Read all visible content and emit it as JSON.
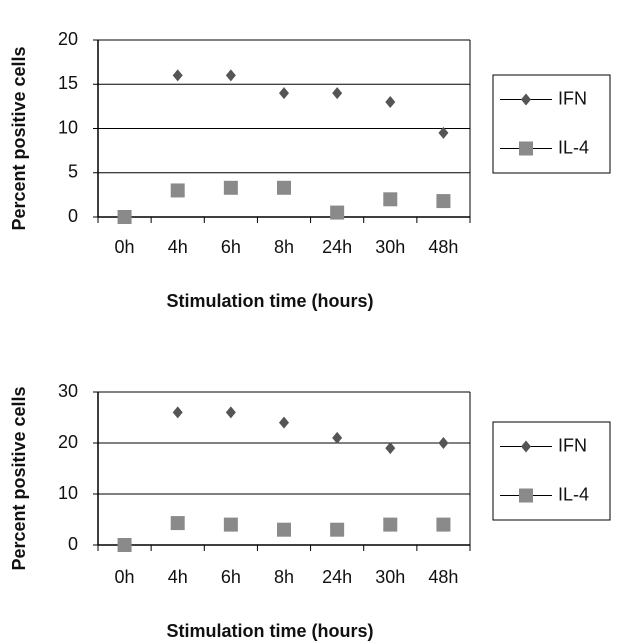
{
  "chart_data": [
    {
      "type": "scatter",
      "x_label": "Stimulation time (hours)",
      "y_label": "Percent positive cells",
      "categories": [
        "0h",
        "4h",
        "6h",
        "8h",
        "24h",
        "30h",
        "48h"
      ],
      "series": [
        {
          "name": "IFN",
          "color": "#555555",
          "marker": "diamond",
          "values": [
            null,
            16,
            16,
            14,
            14,
            13,
            9.5
          ]
        },
        {
          "name": "IL-4",
          "color": "#8a8a8a",
          "marker": "square",
          "values": [
            0,
            3,
            3.3,
            3.3,
            0.5,
            2,
            1.8
          ]
        }
      ],
      "ylim": [
        0,
        20
      ],
      "yticks": [
        0,
        5,
        10,
        15,
        20
      ],
      "grid": true,
      "legend": "right"
    },
    {
      "type": "scatter",
      "x_label": "Stimulation time (hours)",
      "y_label": "Percent positive cells",
      "categories": [
        "0h",
        "4h",
        "6h",
        "8h",
        "24h",
        "30h",
        "48h"
      ],
      "series": [
        {
          "name": "IFN",
          "color": "#555555",
          "marker": "diamond",
          "values": [
            null,
            26,
            26,
            24,
            21,
            19,
            20
          ]
        },
        {
          "name": "IL-4",
          "color": "#8a8a8a",
          "marker": "square",
          "values": [
            0,
            4.3,
            4,
            3,
            3,
            4,
            4
          ]
        }
      ],
      "ylim": [
        0,
        30
      ],
      "yticks": [
        0,
        10,
        20,
        30
      ],
      "grid": true,
      "legend": "right"
    }
  ]
}
